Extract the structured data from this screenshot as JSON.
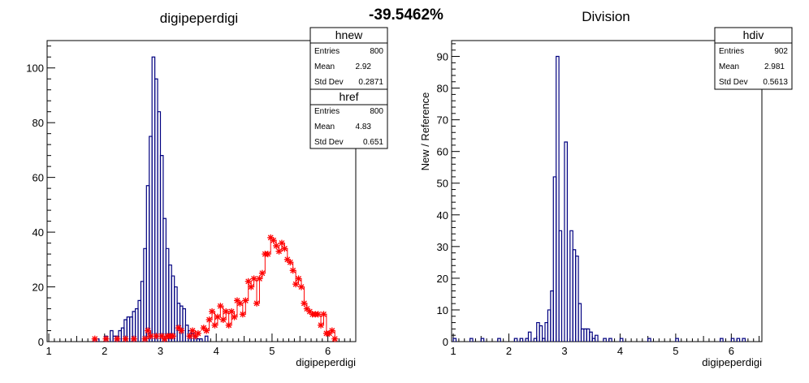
{
  "overall_title": "-39.5462%",
  "chart_data": [
    {
      "type": "histogram",
      "title": "digipeperdigi",
      "xlabel": "digipeperdigi",
      "ylabel": "",
      "xlim": [
        0.97,
        6.5
      ],
      "ylim": [
        0,
        110
      ],
      "x_ticks": [
        "1",
        "2",
        "3",
        "4",
        "5",
        "6"
      ],
      "y_ticks": [
        "0",
        "20",
        "40",
        "60",
        "80",
        "100"
      ],
      "series": [
        {
          "name": "hnew",
          "style": "step-line",
          "color": "#000080",
          "bin_width": 0.05,
          "bins": [
            [
              1.8,
              1
            ],
            [
              1.85,
              1
            ],
            [
              2.0,
              2
            ],
            [
              2.1,
              4
            ],
            [
              2.15,
              2
            ],
            [
              2.2,
              2
            ],
            [
              2.25,
              4
            ],
            [
              2.3,
              5
            ],
            [
              2.35,
              8
            ],
            [
              2.4,
              9
            ],
            [
              2.45,
              9
            ],
            [
              2.5,
              11
            ],
            [
              2.55,
              12
            ],
            [
              2.6,
              15
            ],
            [
              2.65,
              22
            ],
            [
              2.7,
              34
            ],
            [
              2.75,
              57
            ],
            [
              2.8,
              75
            ],
            [
              2.85,
              104
            ],
            [
              2.9,
              96
            ],
            [
              2.95,
              84
            ],
            [
              3.0,
              68
            ],
            [
              3.05,
              45
            ],
            [
              3.1,
              34
            ],
            [
              3.15,
              28
            ],
            [
              3.2,
              24
            ],
            [
              3.25,
              20
            ],
            [
              3.3,
              14
            ],
            [
              3.35,
              13
            ],
            [
              3.4,
              12
            ],
            [
              3.45,
              6
            ],
            [
              3.5,
              4
            ],
            [
              3.55,
              3
            ],
            [
              3.6,
              2
            ],
            [
              3.65,
              1
            ],
            [
              3.7,
              1
            ],
            [
              3.8,
              2
            ]
          ],
          "stats": {
            "Entries": "800",
            "Mean": "2.92",
            "Std Dev": "0.2871"
          }
        },
        {
          "name": "href",
          "style": "markers",
          "color": "#ff0000",
          "bin_width": 0.05,
          "bins": [
            [
              1.8,
              1
            ],
            [
              2.0,
              1
            ],
            [
              2.2,
              1
            ],
            [
              2.35,
              1
            ],
            [
              2.5,
              1
            ],
            [
              2.7,
              1
            ],
            [
              2.75,
              4
            ],
            [
              2.8,
              2
            ],
            [
              2.9,
              2
            ],
            [
              3.0,
              2
            ],
            [
              3.05,
              1
            ],
            [
              3.1,
              2
            ],
            [
              3.15,
              2
            ],
            [
              3.2,
              2
            ],
            [
              3.3,
              5
            ],
            [
              3.35,
              4
            ],
            [
              3.5,
              2
            ],
            [
              3.55,
              4
            ],
            [
              3.6,
              2
            ],
            [
              3.65,
              3
            ],
            [
              3.75,
              5
            ],
            [
              3.8,
              4
            ],
            [
              3.85,
              8
            ],
            [
              3.9,
              11
            ],
            [
              3.95,
              6
            ],
            [
              4.0,
              9
            ],
            [
              4.05,
              13
            ],
            [
              4.1,
              8
            ],
            [
              4.15,
              11
            ],
            [
              4.2,
              6
            ],
            [
              4.25,
              11
            ],
            [
              4.3,
              9
            ],
            [
              4.35,
              15
            ],
            [
              4.4,
              14
            ],
            [
              4.45,
              10
            ],
            [
              4.5,
              15
            ],
            [
              4.55,
              22
            ],
            [
              4.6,
              20
            ],
            [
              4.65,
              23
            ],
            [
              4.7,
              14
            ],
            [
              4.75,
              23
            ],
            [
              4.8,
              25
            ],
            [
              4.85,
              32
            ],
            [
              4.9,
              32
            ],
            [
              4.95,
              38
            ],
            [
              5.0,
              37
            ],
            [
              5.05,
              35
            ],
            [
              5.1,
              33
            ],
            [
              5.15,
              36
            ],
            [
              5.2,
              34
            ],
            [
              5.25,
              30
            ],
            [
              5.3,
              29
            ],
            [
              5.35,
              26
            ],
            [
              5.4,
              21
            ],
            [
              5.45,
              23
            ],
            [
              5.5,
              20
            ],
            [
              5.55,
              14
            ],
            [
              5.6,
              12
            ],
            [
              5.65,
              11
            ],
            [
              5.7,
              10
            ],
            [
              5.75,
              10
            ],
            [
              5.8,
              10
            ],
            [
              5.85,
              6
            ],
            [
              5.9,
              10
            ],
            [
              5.95,
              3
            ],
            [
              6.0,
              3
            ],
            [
              6.05,
              4
            ],
            [
              6.1,
              1
            ]
          ],
          "stats": {
            "Entries": "800",
            "Mean": "4.83",
            "Std Dev": "0.651"
          }
        }
      ]
    },
    {
      "type": "histogram",
      "title": "Division",
      "xlabel": "digipeperdigi",
      "ylabel": "New / Reference",
      "xlim": [
        0.97,
        6.55
      ],
      "ylim": [
        0,
        95
      ],
      "x_ticks": [
        "1",
        "2",
        "3",
        "4",
        "5",
        "6"
      ],
      "y_ticks": [
        "0",
        "10",
        "20",
        "30",
        "40",
        "50",
        "60",
        "70",
        "80",
        "90"
      ],
      "series": [
        {
          "name": "hdiv",
          "style": "step-line",
          "color": "#000080",
          "bin_width": 0.05,
          "bins": [
            [
              1.0,
              1
            ],
            [
              1.3,
              1
            ],
            [
              1.5,
              1
            ],
            [
              1.8,
              1
            ],
            [
              2.1,
              1
            ],
            [
              2.2,
              1
            ],
            [
              2.3,
              1
            ],
            [
              2.35,
              3
            ],
            [
              2.45,
              1
            ],
            [
              2.5,
              6
            ],
            [
              2.55,
              5
            ],
            [
              2.6,
              1
            ],
            [
              2.65,
              6
            ],
            [
              2.7,
              10
            ],
            [
              2.75,
              16
            ],
            [
              2.8,
              52
            ],
            [
              2.85,
              90
            ],
            [
              2.9,
              35
            ],
            [
              2.95,
              0
            ],
            [
              3.0,
              63
            ],
            [
              3.05,
              0
            ],
            [
              3.1,
              35
            ],
            [
              3.15,
              29
            ],
            [
              3.2,
              27
            ],
            [
              3.25,
              12
            ],
            [
              3.3,
              4
            ],
            [
              3.35,
              4
            ],
            [
              3.4,
              4
            ],
            [
              3.45,
              3
            ],
            [
              3.5,
              1
            ],
            [
              3.55,
              2
            ],
            [
              3.7,
              1
            ],
            [
              3.8,
              1
            ],
            [
              4.0,
              1
            ],
            [
              4.5,
              1
            ],
            [
              5.0,
              1
            ],
            [
              5.8,
              1
            ],
            [
              6.0,
              1
            ],
            [
              6.1,
              1
            ],
            [
              6.2,
              1
            ]
          ],
          "stats": {
            "Entries": "902",
            "Mean": "2.981",
            "Std Dev": "0.5613"
          }
        }
      ]
    }
  ]
}
